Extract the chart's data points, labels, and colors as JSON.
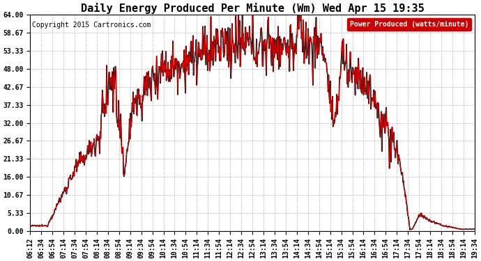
{
  "title": "Daily Energy Produced Per Minute (Wm) Wed Apr 15 19:35",
  "copyright": "Copyright 2015 Cartronics.com",
  "legend_label": "Power Produced (watts/minute)",
  "legend_bg": "#cc0000",
  "legend_text_color": "#ffffff",
  "y_min": 0.0,
  "y_max": 64.0,
  "y_ticks": [
    0.0,
    5.33,
    10.67,
    16.0,
    21.33,
    26.67,
    32.0,
    37.33,
    42.67,
    48.0,
    53.33,
    58.67,
    64.0
  ],
  "y_tick_labels": [
    "0.00",
    "5.33",
    "10.67",
    "16.00",
    "21.33",
    "26.67",
    "32.00",
    "37.33",
    "42.67",
    "48.00",
    "53.33",
    "58.67",
    "64.00"
  ],
  "x_tick_labels": [
    "06:12",
    "06:34",
    "06:54",
    "07:14",
    "07:34",
    "07:54",
    "08:14",
    "08:34",
    "08:54",
    "09:14",
    "09:34",
    "09:54",
    "10:14",
    "10:34",
    "10:54",
    "11:14",
    "11:34",
    "11:54",
    "12:14",
    "12:34",
    "12:54",
    "13:14",
    "13:34",
    "13:54",
    "14:14",
    "14:34",
    "14:54",
    "15:14",
    "15:34",
    "15:54",
    "16:14",
    "16:34",
    "16:54",
    "17:14",
    "17:34",
    "17:54",
    "18:14",
    "18:34",
    "18:54",
    "19:14",
    "19:34"
  ],
  "line_color": "#dd0000",
  "outline_color": "#000000",
  "bg_color": "#ffffff",
  "plot_bg_color": "#ffffff",
  "grid_color": "#aaaaaa",
  "title_fontsize": 11,
  "copyright_fontsize": 7,
  "axis_fontsize": 7
}
